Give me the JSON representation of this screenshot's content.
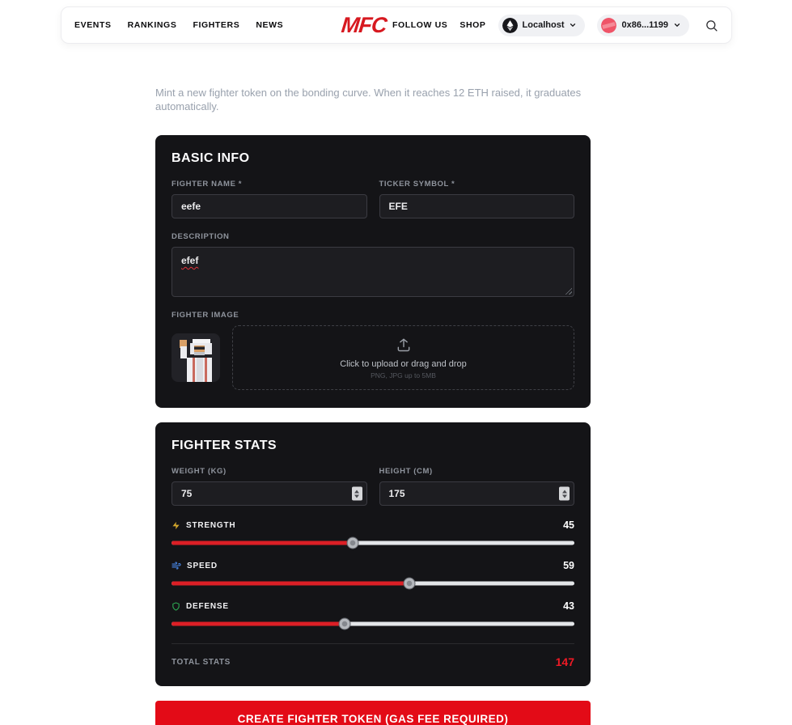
{
  "navbar": {
    "links": [
      {
        "label": "EVENTS"
      },
      {
        "label": "RANKINGS"
      },
      {
        "label": "FIGHTERS"
      },
      {
        "label": "NEWS"
      }
    ],
    "logo": "MFC",
    "follow_us": "FOLLOW US",
    "shop": "SHOP",
    "network": {
      "label": "Localhost",
      "icon": "ethereum-network-icon"
    },
    "wallet": {
      "label": "0x86...1199",
      "icon": "wallet-avatar"
    },
    "search_icon": "search-icon"
  },
  "intro": "Mint a new fighter token on the bonding curve. When it reaches 12 ETH raised, it graduates automatically.",
  "basic_info": {
    "title": "BASIC INFO",
    "fighter_name": {
      "label": "FIGHTER NAME *",
      "value": "eefe"
    },
    "ticker_symbol": {
      "label": "TICKER SYMBOL *",
      "value": "EFE"
    },
    "description": {
      "label": "DESCRIPTION",
      "value": "efef"
    },
    "fighter_image": {
      "label": "FIGHTER IMAGE",
      "preview": "pixel-art-fighter-avatar",
      "upload_icon": "upload-icon",
      "upload_text": "Click to upload or drag and drop",
      "upload_hint": "PNG, JPG up to 5MB"
    }
  },
  "fighter_stats": {
    "title": "FIGHTER STATS",
    "weight": {
      "label": "WEIGHT (KG)",
      "value": "75"
    },
    "height": {
      "label": "HEIGHT (CM)",
      "value": "175"
    },
    "sliders": [
      {
        "name": "STRENGTH",
        "value": 45,
        "icon": "lightning-icon",
        "icon_color": "#d4a72c"
      },
      {
        "name": "SPEED",
        "value": 59,
        "icon": "wind-icon",
        "icon_color": "#4a8df0"
      },
      {
        "name": "DEFENSE",
        "value": 43,
        "icon": "shield-icon",
        "icon_color": "#2fb457"
      }
    ],
    "total": {
      "label": "TOTAL STATS",
      "value": "147"
    }
  },
  "submit": {
    "label": "CREATE FIGHTER TOKEN (GAS FEE REQUIRED)"
  },
  "colors": {
    "accent_red": "#e30b17",
    "logo_red": "#d71920",
    "slider_fill": "#dc1f26",
    "card_bg": "#141417",
    "total_value_red": "#ef1a25"
  }
}
